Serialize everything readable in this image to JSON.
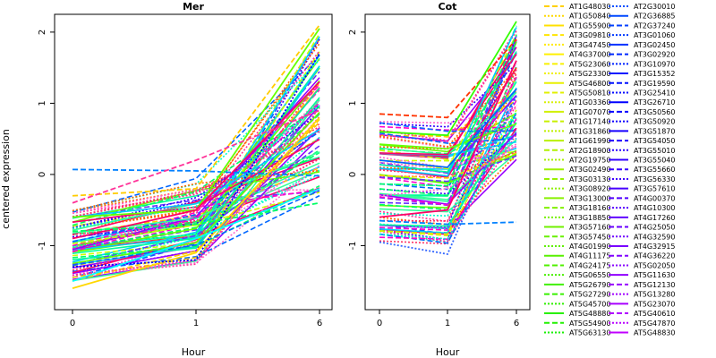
{
  "ylabel": "centered expression",
  "chart_data": [
    {
      "type": "line",
      "title": "Mer",
      "xlabel": "Hour",
      "ylabel": "centered expression",
      "x": [
        "0",
        "1",
        "6"
      ],
      "ylim": [
        -1.9,
        2.25
      ],
      "yticks": [
        -1,
        0,
        1,
        2
      ],
      "grid": false,
      "summary_series": [
        {
          "values": [
            0.07,
            0.05,
            -0.02
          ],
          "color": "#0080ff",
          "style": "dashed"
        },
        {
          "values": [
            -1.6,
            -1.1,
            0.8
          ],
          "color": "#ffd700",
          "style": "solid"
        },
        {
          "values": [
            -0.3,
            -0.2,
            2.1
          ],
          "color": "#ffcc00",
          "style": "dashed"
        },
        {
          "values": [
            -0.6,
            -0.5,
            2.05
          ],
          "color": "#66ff00",
          "style": "solid"
        },
        {
          "values": [
            -1.3,
            -1.2,
            1.7
          ],
          "color": "#0000ff",
          "style": "dotted"
        },
        {
          "values": [
            -0.9,
            -0.5,
            1.3
          ],
          "color": "#ff0066",
          "style": "solid"
        },
        {
          "values": [
            -0.4,
            0.2,
            0.9
          ],
          "color": "#ff3399",
          "style": "dashed"
        },
        {
          "values": [
            -1.5,
            -0.9,
            -0.2
          ],
          "color": "#00ffff",
          "style": "solid"
        },
        {
          "values": [
            -0.8,
            -0.7,
            -0.4
          ],
          "color": "#00ff66",
          "style": "dashed"
        }
      ]
    },
    {
      "type": "line",
      "title": "Cot",
      "xlabel": "Hour",
      "x": [
        "0",
        "1",
        "6"
      ],
      "ylim": [
        -1.9,
        2.25
      ],
      "yticks": [
        -1,
        0,
        1,
        2
      ],
      "grid": false,
      "summary_series": [
        {
          "values": [
            0.85,
            0.8,
            1.9
          ],
          "color": "#ff3300",
          "style": "dashed"
        },
        {
          "values": [
            0.6,
            0.55,
            2.15
          ],
          "color": "#33ff00",
          "style": "solid"
        },
        {
          "values": [
            -0.65,
            -0.7,
            -0.67
          ],
          "color": "#0080ff",
          "style": "dashed"
        },
        {
          "values": [
            -0.95,
            -1.12,
            1.1
          ],
          "color": "#3366ff",
          "style": "dotted"
        },
        {
          "values": [
            -0.6,
            -0.5,
            1.6
          ],
          "color": "#ff0066",
          "style": "solid"
        },
        {
          "values": [
            0.2,
            0.1,
            1.2
          ],
          "color": "#0066ff",
          "style": "solid"
        },
        {
          "values": [
            -0.3,
            -0.2,
            0.4
          ],
          "color": "#ff66cc",
          "style": "dotted"
        }
      ]
    }
  ],
  "legend": {
    "columns": [
      [
        {
          "label": "AT1G48030",
          "color": "#ffd000",
          "style": "dashed"
        },
        {
          "label": "AT1G50840",
          "color": "#ffd800",
          "style": "dotted"
        },
        {
          "label": "AT1G55900",
          "color": "#ffe000",
          "style": "solid"
        },
        {
          "label": "AT3G09810",
          "color": "#ffe500",
          "style": "dashed"
        },
        {
          "label": "AT3G47450",
          "color": "#ffea00",
          "style": "dotted"
        },
        {
          "label": "AT4G37000",
          "color": "#fff000",
          "style": "solid"
        },
        {
          "label": "AT5G23060",
          "color": "#f8f000",
          "style": "dashed"
        },
        {
          "label": "AT5G23300",
          "color": "#f0f000",
          "style": "dotted"
        },
        {
          "label": "AT5G46800",
          "color": "#e8f000",
          "style": "solid"
        },
        {
          "label": "AT5G50810",
          "color": "#e0f000",
          "style": "dashed"
        },
        {
          "label": "AT1G03360",
          "color": "#d8f000",
          "style": "dotted"
        },
        {
          "label": "AT1G07070",
          "color": "#d0f000",
          "style": "solid"
        },
        {
          "label": "AT1G17140",
          "color": "#c8f000",
          "style": "dashed"
        },
        {
          "label": "AT1G31860",
          "color": "#c0f000",
          "style": "dotted"
        },
        {
          "label": "AT1G61990",
          "color": "#b8f000",
          "style": "solid"
        },
        {
          "label": "AT2G18900",
          "color": "#b0f000",
          "style": "dashed"
        },
        {
          "label": "AT2G19750",
          "color": "#a8f000",
          "style": "dotted"
        },
        {
          "label": "AT3G02490",
          "color": "#a0f000",
          "style": "solid"
        },
        {
          "label": "AT3G03130",
          "color": "#98f000",
          "style": "dashed"
        },
        {
          "label": "AT3G08920",
          "color": "#90f000",
          "style": "dotted"
        },
        {
          "label": "AT3G13000",
          "color": "#88f000",
          "style": "solid"
        },
        {
          "label": "AT3G18160",
          "color": "#80f000",
          "style": "dashed"
        },
        {
          "label": "AT3G18850",
          "color": "#78f000",
          "style": "dotted"
        },
        {
          "label": "AT3G57160",
          "color": "#70f000",
          "style": "solid"
        },
        {
          "label": "AT3G57450",
          "color": "#68f000",
          "style": "dashed"
        },
        {
          "label": "AT4G01990",
          "color": "#60f000",
          "style": "dotted"
        },
        {
          "label": "AT4G11175",
          "color": "#58f000",
          "style": "solid"
        },
        {
          "label": "AT4G24175",
          "color": "#50f000",
          "style": "dashed"
        },
        {
          "label": "AT5G06550",
          "color": "#48f000",
          "style": "dotted"
        },
        {
          "label": "AT5G26790",
          "color": "#40f000",
          "style": "solid"
        },
        {
          "label": "AT5G27290",
          "color": "#38f000",
          "style": "dashed"
        },
        {
          "label": "AT5G45700",
          "color": "#30f000",
          "style": "dotted"
        },
        {
          "label": "AT5G48880",
          "color": "#28f000",
          "style": "solid"
        },
        {
          "label": "AT5G54900",
          "color": "#20f000",
          "style": "dashed"
        },
        {
          "label": "AT5G63130",
          "color": "#18f000",
          "style": "dotted"
        }
      ],
      [
        {
          "label": "AT2G30010",
          "color": "#0050ff",
          "style": "dotted"
        },
        {
          "label": "AT2G36885",
          "color": "#0048ff",
          "style": "solid"
        },
        {
          "label": "AT2G37240",
          "color": "#0040ff",
          "style": "dashed"
        },
        {
          "label": "AT3G01060",
          "color": "#0038ff",
          "style": "dotted"
        },
        {
          "label": "AT3G02450",
          "color": "#0030ff",
          "style": "solid"
        },
        {
          "label": "AT3G02920",
          "color": "#0028ff",
          "style": "dashed"
        },
        {
          "label": "AT3G10970",
          "color": "#0020ff",
          "style": "dotted"
        },
        {
          "label": "AT3G15352",
          "color": "#0018ff",
          "style": "solid"
        },
        {
          "label": "AT3G19590",
          "color": "#0010ff",
          "style": "dashed"
        },
        {
          "label": "AT3G25410",
          "color": "#0008ff",
          "style": "dotted"
        },
        {
          "label": "AT3G26710",
          "color": "#0000ff",
          "style": "solid"
        },
        {
          "label": "AT3G50560",
          "color": "#0800ff",
          "style": "dashed"
        },
        {
          "label": "AT3G50920",
          "color": "#1000ff",
          "style": "dotted"
        },
        {
          "label": "AT3G51870",
          "color": "#1800ff",
          "style": "solid"
        },
        {
          "label": "AT3G54050",
          "color": "#2000ff",
          "style": "dashed"
        },
        {
          "label": "AT3G55010",
          "color": "#2800ff",
          "style": "dotted"
        },
        {
          "label": "AT3G55040",
          "color": "#3000ff",
          "style": "solid"
        },
        {
          "label": "AT3G55660",
          "color": "#3800ff",
          "style": "dashed"
        },
        {
          "label": "AT3G56330",
          "color": "#4000ff",
          "style": "dotted"
        },
        {
          "label": "AT3G57610",
          "color": "#4800ff",
          "style": "solid"
        },
        {
          "label": "AT4G00370",
          "color": "#5000ff",
          "style": "dashed"
        },
        {
          "label": "AT4G10300",
          "color": "#5800ff",
          "style": "dotted"
        },
        {
          "label": "AT4G17260",
          "color": "#6000ff",
          "style": "solid"
        },
        {
          "label": "AT4G25050",
          "color": "#6800ff",
          "style": "dashed"
        },
        {
          "label": "AT4G32590",
          "color": "#7000ff",
          "style": "dotted"
        },
        {
          "label": "AT4G32915",
          "color": "#7800ff",
          "style": "solid"
        },
        {
          "label": "AT4G36220",
          "color": "#8000ff",
          "style": "dashed"
        },
        {
          "label": "AT5G02050",
          "color": "#8800ff",
          "style": "dotted"
        },
        {
          "label": "AT5G11630",
          "color": "#9000ff",
          "style": "solid"
        },
        {
          "label": "AT5G12130",
          "color": "#9800ff",
          "style": "dashed"
        },
        {
          "label": "AT5G13280",
          "color": "#a000ff",
          "style": "dotted"
        },
        {
          "label": "AT5G23070",
          "color": "#a800ff",
          "style": "solid"
        },
        {
          "label": "AT5G40610",
          "color": "#b000ff",
          "style": "dashed"
        },
        {
          "label": "AT5G47870",
          "color": "#b800ff",
          "style": "dotted"
        },
        {
          "label": "AT5G48830",
          "color": "#c000ff",
          "style": "solid"
        }
      ]
    ]
  }
}
